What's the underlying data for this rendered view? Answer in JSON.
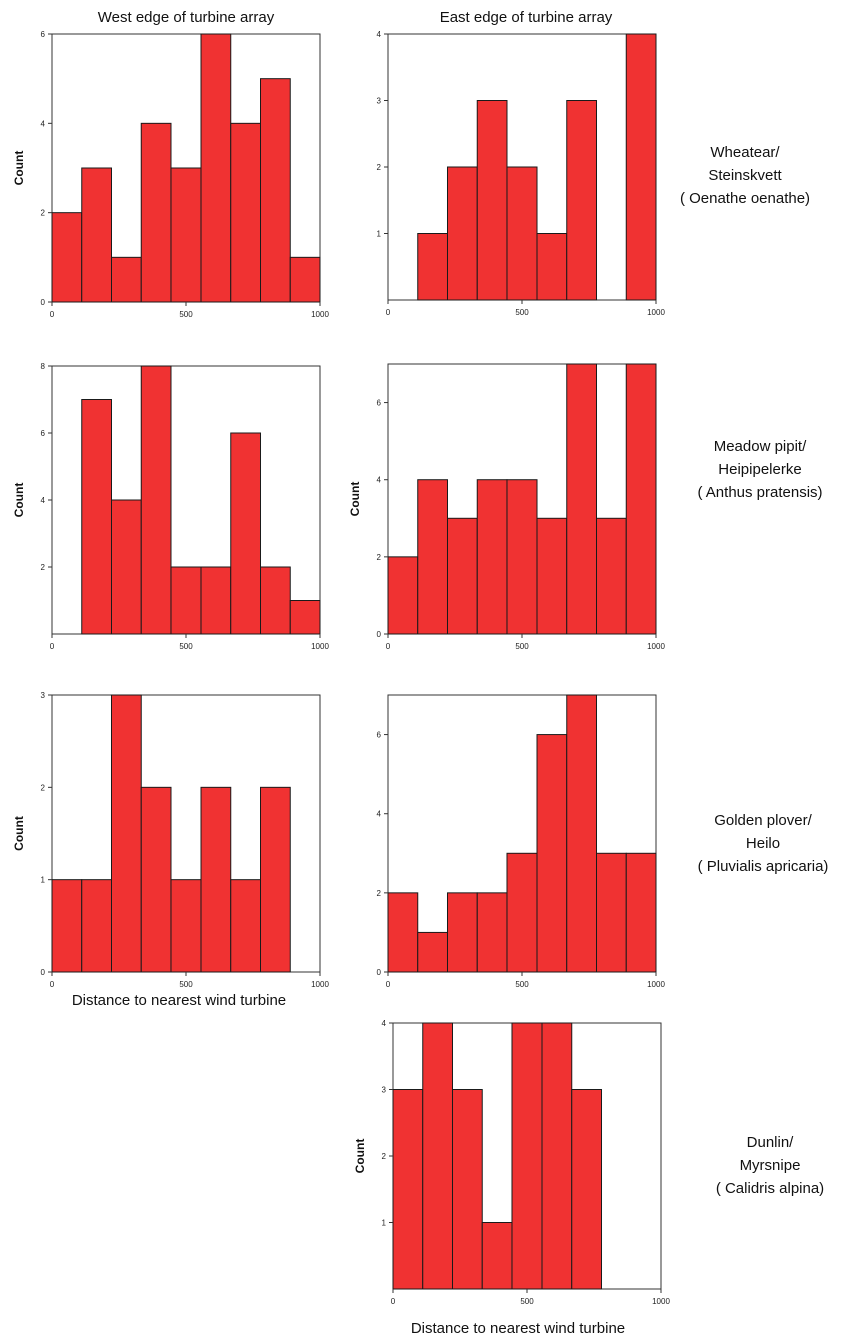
{
  "column_titles": [
    "West edge of turbine array",
    "East edge of turbine array"
  ],
  "species_labels": [
    [
      "Wheatear/",
      "Steinskvett",
      "( Oenathe oenathe)"
    ],
    [
      "Meadow pipit/",
      "Heipipelerke",
      "( Anthus pratensis)"
    ],
    [
      "Golden plover/",
      "Heilo",
      "( Pluvialis apricaria)"
    ],
    [
      "Dunlin/",
      "Myrsnipe",
      "( Calidris alpina)"
    ]
  ],
  "x_axis_title": "Distance to nearest wind turbine",
  "colors": {
    "bar": "#f03232",
    "bar_stroke": "#1a1a1a",
    "axis": "#333333"
  },
  "chart_data": [
    {
      "type": "bar",
      "species": "Wheatear",
      "side": "West",
      "ylabel": "Count",
      "xlim": [
        0,
        1000
      ],
      "ylim": [
        0,
        6
      ],
      "xticks": [
        0,
        500,
        1000
      ],
      "ytick_labels": [
        "0",
        "2",
        "4",
        "6"
      ],
      "bin_edges": [
        0,
        111,
        222,
        333,
        444,
        556,
        667,
        778,
        889,
        1000
      ],
      "values": [
        2,
        3,
        1,
        4,
        3,
        6,
        4,
        5,
        1
      ]
    },
    {
      "type": "bar",
      "species": "Wheatear",
      "side": "East",
      "ylabel": "",
      "xlim": [
        0,
        1000
      ],
      "ylim": [
        0,
        4
      ],
      "xticks": [
        0,
        500,
        1000
      ],
      "ytick_labels": [
        "1",
        "2",
        "3",
        "4"
      ],
      "bin_edges": [
        0,
        111,
        222,
        333,
        444,
        556,
        667,
        778,
        889,
        1000
      ],
      "values": [
        0,
        1,
        2,
        3,
        2,
        1,
        3,
        0,
        4
      ]
    },
    {
      "type": "bar",
      "species": "Meadow pipit",
      "side": "West",
      "ylabel": "Count",
      "xlim": [
        0,
        1000
      ],
      "ylim": [
        0,
        8
      ],
      "xticks": [
        0,
        500,
        1000
      ],
      "ytick_labels": [
        "2",
        "4",
        "6",
        "8"
      ],
      "bin_edges": [
        0,
        111,
        222,
        333,
        444,
        556,
        667,
        778,
        889,
        1000
      ],
      "values": [
        0,
        7,
        4,
        8,
        2,
        2,
        6,
        2,
        1
      ]
    },
    {
      "type": "bar",
      "species": "Meadow pipit",
      "side": "East",
      "ylabel": "Count",
      "xlim": [
        0,
        1000
      ],
      "ylim": [
        0,
        7
      ],
      "xticks": [
        0,
        500,
        1000
      ],
      "ytick_labels": [
        "0",
        "2",
        "4",
        "6"
      ],
      "bin_edges": [
        0,
        111,
        222,
        333,
        444,
        556,
        667,
        778,
        889,
        1000
      ],
      "values": [
        2,
        4,
        3,
        4,
        4,
        3,
        7,
        3,
        7
      ]
    },
    {
      "type": "bar",
      "species": "Golden plover",
      "side": "West",
      "ylabel": "Count",
      "xlim": [
        0,
        1000
      ],
      "ylim": [
        0,
        3
      ],
      "xticks": [
        0,
        500,
        1000
      ],
      "ytick_labels": [
        "0",
        "1",
        "2",
        "3"
      ],
      "bin_edges": [
        0,
        111,
        222,
        333,
        444,
        556,
        667,
        778,
        889
      ],
      "values": [
        1,
        1,
        3,
        2,
        1,
        2,
        1,
        2
      ]
    },
    {
      "type": "bar",
      "species": "Golden plover",
      "side": "East",
      "ylabel": "",
      "xlim": [
        0,
        1000
      ],
      "ylim": [
        0,
        7
      ],
      "xticks": [
        0,
        500,
        1000
      ],
      "ytick_labels": [
        "0",
        "2",
        "4",
        "6"
      ],
      "bin_edges": [
        0,
        111,
        222,
        333,
        444,
        556,
        667,
        778,
        889,
        1000
      ],
      "values": [
        2,
        1,
        2,
        2,
        3,
        6,
        7,
        3,
        3
      ]
    },
    {
      "type": "bar",
      "species": "Dunlin",
      "side": "East",
      "ylabel": "Count",
      "xlim": [
        0,
        1000
      ],
      "ylim": [
        0,
        4
      ],
      "xticks": [
        0,
        500,
        1000
      ],
      "ytick_labels": [
        "1",
        "2",
        "3",
        "4"
      ],
      "bin_edges": [
        0,
        111,
        222,
        333,
        444,
        556,
        667,
        778
      ],
      "values": [
        3,
        4,
        3,
        1,
        4,
        4,
        3
      ]
    }
  ]
}
